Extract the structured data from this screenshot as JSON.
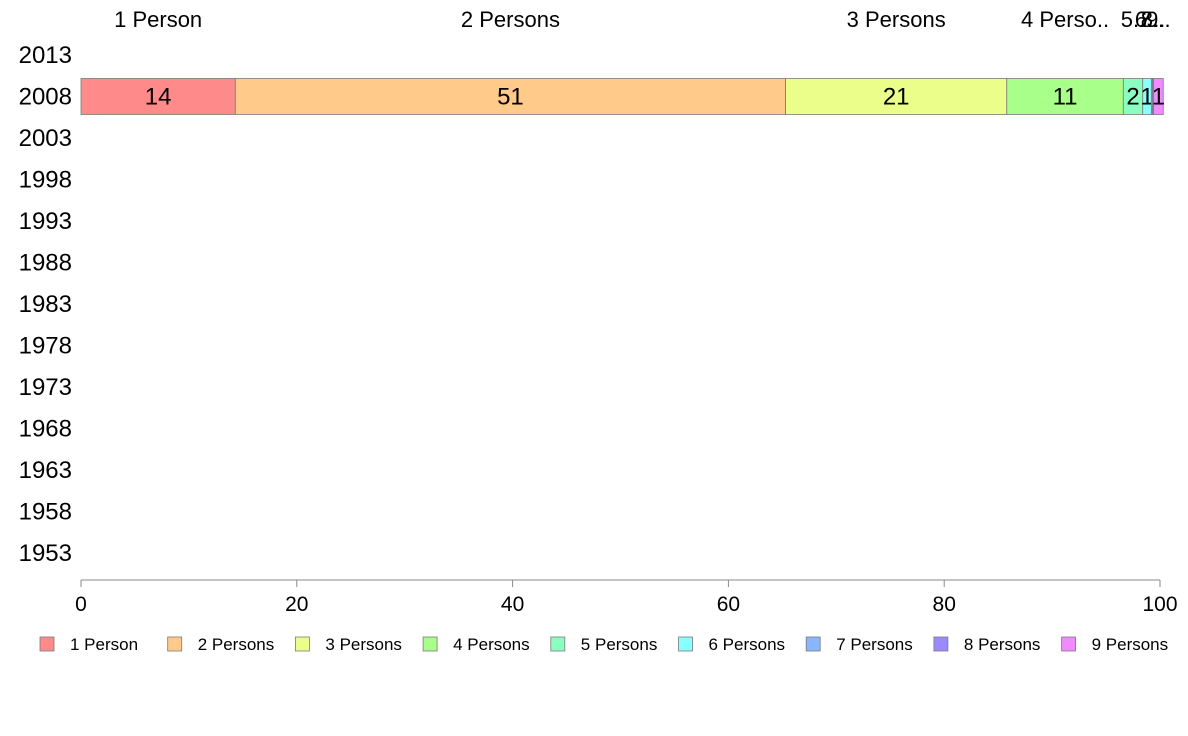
{
  "chart_data": {
    "type": "bar",
    "orientation": "horizontal",
    "stacked": true,
    "categories": [
      "2013",
      "2008",
      "2003",
      "1998",
      "1993",
      "1988",
      "1983",
      "1978",
      "1973",
      "1968",
      "1963",
      "1958",
      "1953"
    ],
    "xlim": [
      0,
      100
    ],
    "xticks": [
      "0",
      "20",
      "40",
      "60",
      "80",
      "100"
    ],
    "legend_position": "bottom",
    "grid": false,
    "series": [
      {
        "name": "1 Person",
        "color": "#ff8a8a",
        "values": [
          null,
          14.3,
          null,
          null,
          null,
          null,
          null,
          null,
          null,
          null,
          null,
          null,
          null
        ],
        "data_label": "14",
        "top_label": "1 Person"
      },
      {
        "name": "2 Persons",
        "color": "#ffca8a",
        "values": [
          null,
          51.0,
          null,
          null,
          null,
          null,
          null,
          null,
          null,
          null,
          null,
          null,
          null
        ],
        "data_label": "51",
        "top_label": "2 Persons"
      },
      {
        "name": "3 Persons",
        "color": "#ecfe8a",
        "values": [
          null,
          20.5,
          null,
          null,
          null,
          null,
          null,
          null,
          null,
          null,
          null,
          null,
          null
        ],
        "data_label": "21",
        "top_label": "3 Persons"
      },
      {
        "name": "4 Persons",
        "color": "#a8ff8a",
        "values": [
          null,
          10.8,
          null,
          null,
          null,
          null,
          null,
          null,
          null,
          null,
          null,
          null,
          null
        ],
        "data_label": "11",
        "top_label": "4 Perso.."
      },
      {
        "name": "5 Persons",
        "color": "#8affc0",
        "values": [
          null,
          1.8,
          null,
          null,
          null,
          null,
          null,
          null,
          null,
          null,
          null,
          null,
          null
        ],
        "data_label": "2",
        "top_label": "5.."
      },
      {
        "name": "6 Persons",
        "color": "#8affff",
        "values": [
          null,
          0.8,
          null,
          null,
          null,
          null,
          null,
          null,
          null,
          null,
          null,
          null,
          null
        ],
        "data_label": "1",
        "top_label": "6.."
      },
      {
        "name": "7 Persons",
        "color": "#8ab5ff",
        "values": [
          null,
          0.1,
          null,
          null,
          null,
          null,
          null,
          null,
          null,
          null,
          null,
          null,
          null
        ],
        "data_label": "",
        "top_label": "7.."
      },
      {
        "name": "8 Persons",
        "color": "#9a8aff",
        "values": [
          null,
          0.1,
          null,
          null,
          null,
          null,
          null,
          null,
          null,
          null,
          null,
          null,
          null
        ],
        "data_label": "",
        "top_label": "8.."
      },
      {
        "name": "9 Persons",
        "color": "#ef8aff",
        "values": [
          null,
          0.9,
          null,
          null,
          null,
          null,
          null,
          null,
          null,
          null,
          null,
          null,
          null
        ],
        "data_label": "1",
        "top_label": "9.."
      }
    ]
  }
}
